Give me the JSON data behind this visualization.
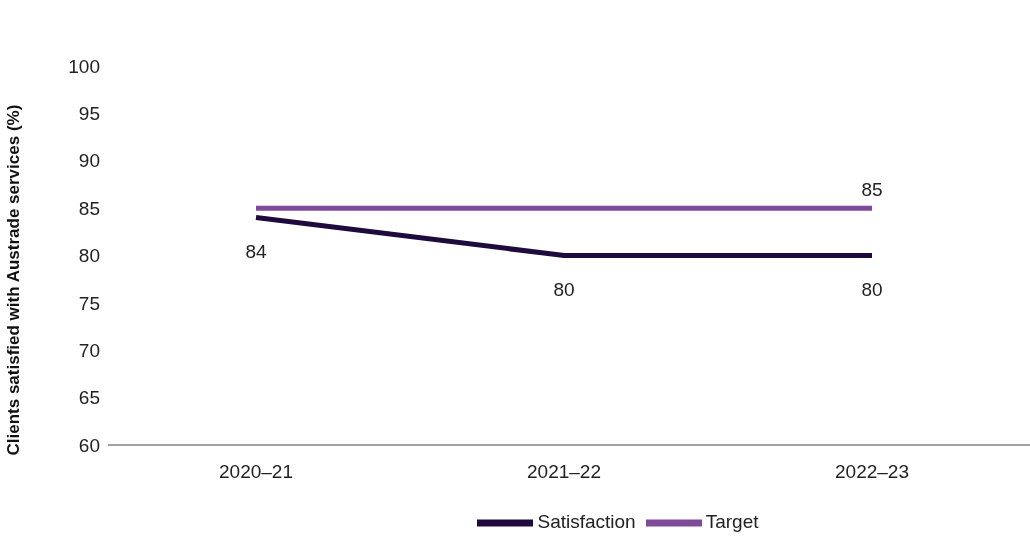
{
  "chart_data": {
    "type": "line",
    "ylabel": "Clients satisfied with Austrade services (%)",
    "categories": [
      "2020–21",
      "2021–22",
      "2022–23"
    ],
    "series": [
      {
        "name": "Satisfaction",
        "color": "#1e0a3c",
        "values": [
          84,
          80,
          80
        ],
        "value_labels": [
          "84",
          "80",
          "80"
        ]
      },
      {
        "name": "Target",
        "color": "#7e4a9a",
        "values": [
          85,
          85,
          85
        ],
        "value_labels": [
          null,
          null,
          "85"
        ]
      }
    ],
    "ylim": [
      60,
      100
    ],
    "yticks": [
      60,
      65,
      70,
      75,
      80,
      85,
      90,
      95,
      100
    ],
    "grid": false,
    "legend": "bottom",
    "marker": "none",
    "line_style": "solid"
  }
}
